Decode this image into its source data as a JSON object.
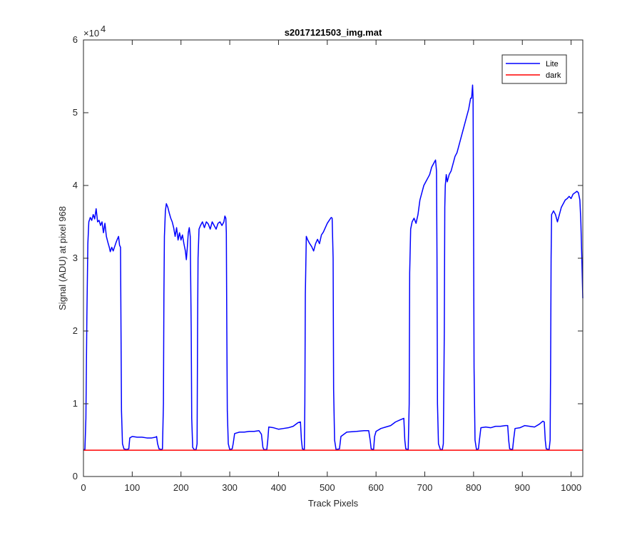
{
  "chart_data": {
    "type": "line",
    "title": "s2017121503_img.mat",
    "xlabel": "Track Pixels",
    "ylabel": "Signal (ADU) at pixel 968",
    "xlim": [
      0,
      1024
    ],
    "ylim": [
      0,
      60000
    ],
    "x_ticks": [
      0,
      100,
      200,
      300,
      400,
      500,
      600,
      700,
      800,
      900,
      1000
    ],
    "x_tick_labels": [
      "0",
      "100",
      "200",
      "300",
      "400",
      "500",
      "600",
      "700",
      "800",
      "900",
      "1000"
    ],
    "y_ticks": [
      0,
      10000,
      20000,
      30000,
      40000,
      50000,
      60000
    ],
    "y_tick_labels": [
      "0",
      "1",
      "2",
      "3",
      "4",
      "5",
      "6"
    ],
    "y_exponent_label": "×10",
    "y_exponent_power": "4",
    "legend_position": "top-right",
    "grid": false,
    "series": [
      {
        "name": "Lite",
        "color": "#0000ff",
        "points": [
          [
            0,
            3700
          ],
          [
            3,
            3700
          ],
          [
            5,
            8000
          ],
          [
            7,
            22000
          ],
          [
            9,
            32000
          ],
          [
            11,
            35000
          ],
          [
            14,
            35600
          ],
          [
            17,
            35200
          ],
          [
            20,
            36000
          ],
          [
            23,
            35400
          ],
          [
            26,
            36800
          ],
          [
            29,
            35000
          ],
          [
            32,
            35200
          ],
          [
            35,
            34500
          ],
          [
            38,
            35000
          ],
          [
            41,
            33500
          ],
          [
            44,
            34800
          ],
          [
            47,
            33000
          ],
          [
            50,
            32200
          ],
          [
            53,
            31500
          ],
          [
            55,
            30900
          ],
          [
            58,
            31500
          ],
          [
            61,
            31000
          ],
          [
            64,
            31600
          ],
          [
            67,
            32200
          ],
          [
            70,
            32700
          ],
          [
            72,
            33000
          ],
          [
            74,
            31800
          ],
          [
            76,
            31500
          ],
          [
            77,
            20000
          ],
          [
            78,
            9000
          ],
          [
            80,
            4500
          ],
          [
            83,
            3800
          ],
          [
            88,
            3700
          ],
          [
            93,
            3800
          ],
          [
            95,
            5300
          ],
          [
            100,
            5500
          ],
          [
            110,
            5400
          ],
          [
            120,
            5400
          ],
          [
            130,
            5300
          ],
          [
            140,
            5300
          ],
          [
            148,
            5400
          ],
          [
            150,
            5500
          ],
          [
            152,
            4500
          ],
          [
            155,
            3800
          ],
          [
            160,
            3700
          ],
          [
            162,
            3800
          ],
          [
            164,
            10000
          ],
          [
            165,
            25000
          ],
          [
            166,
            33000
          ],
          [
            168,
            36500
          ],
          [
            170,
            37500
          ],
          [
            173,
            37000
          ],
          [
            176,
            36200
          ],
          [
            179,
            35500
          ],
          [
            182,
            35000
          ],
          [
            185,
            34200
          ],
          [
            188,
            33000
          ],
          [
            191,
            34200
          ],
          [
            194,
            32500
          ],
          [
            197,
            33500
          ],
          [
            200,
            32500
          ],
          [
            203,
            33200
          ],
          [
            206,
            32000
          ],
          [
            209,
            31000
          ],
          [
            211,
            29800
          ],
          [
            213,
            31500
          ],
          [
            215,
            33500
          ],
          [
            217,
            34200
          ],
          [
            219,
            33000
          ],
          [
            221,
            20000
          ],
          [
            222,
            8000
          ],
          [
            224,
            4000
          ],
          [
            227,
            3700
          ],
          [
            231,
            3700
          ],
          [
            233,
            4500
          ],
          [
            234,
            20000
          ],
          [
            235,
            30000
          ],
          [
            237,
            34000
          ],
          [
            240,
            34500
          ],
          [
            244,
            35000
          ],
          [
            248,
            34200
          ],
          [
            252,
            35000
          ],
          [
            256,
            34700
          ],
          [
            260,
            34000
          ],
          [
            264,
            35000
          ],
          [
            268,
            34500
          ],
          [
            272,
            34000
          ],
          [
            276,
            34800
          ],
          [
            280,
            35000
          ],
          [
            284,
            34500
          ],
          [
            288,
            35000
          ],
          [
            290,
            35800
          ],
          [
            292,
            35500
          ],
          [
            293,
            33500
          ],
          [
            294,
            20000
          ],
          [
            295,
            9000
          ],
          [
            297,
            4500
          ],
          [
            300,
            3700
          ],
          [
            305,
            3800
          ],
          [
            307,
            4500
          ],
          [
            310,
            5900
          ],
          [
            320,
            6100
          ],
          [
            330,
            6100
          ],
          [
            340,
            6200
          ],
          [
            350,
            6200
          ],
          [
            360,
            6300
          ],
          [
            365,
            5800
          ],
          [
            368,
            4000
          ],
          [
            370,
            3700
          ],
          [
            376,
            3700
          ],
          [
            378,
            5000
          ],
          [
            380,
            6800
          ],
          [
            390,
            6700
          ],
          [
            400,
            6500
          ],
          [
            410,
            6600
          ],
          [
            420,
            6700
          ],
          [
            430,
            6900
          ],
          [
            440,
            7400
          ],
          [
            445,
            7500
          ],
          [
            447,
            5000
          ],
          [
            449,
            3800
          ],
          [
            453,
            3700
          ],
          [
            454,
            10000
          ],
          [
            455,
            25000
          ],
          [
            457,
            33000
          ],
          [
            460,
            32500
          ],
          [
            464,
            32000
          ],
          [
            468,
            31600
          ],
          [
            472,
            31000
          ],
          [
            476,
            32000
          ],
          [
            480,
            32600
          ],
          [
            484,
            32000
          ],
          [
            488,
            33200
          ],
          [
            492,
            33600
          ],
          [
            496,
            34200
          ],
          [
            500,
            34800
          ],
          [
            504,
            35200
          ],
          [
            508,
            35600
          ],
          [
            510,
            35500
          ],
          [
            512,
            30000
          ],
          [
            513,
            12000
          ],
          [
            515,
            5000
          ],
          [
            518,
            3700
          ],
          [
            525,
            3800
          ],
          [
            528,
            5500
          ],
          [
            540,
            6100
          ],
          [
            560,
            6200
          ],
          [
            575,
            6300
          ],
          [
            585,
            6300
          ],
          [
            588,
            5000
          ],
          [
            590,
            3800
          ],
          [
            595,
            3700
          ],
          [
            597,
            5500
          ],
          [
            600,
            6200
          ],
          [
            610,
            6600
          ],
          [
            620,
            6800
          ],
          [
            630,
            7000
          ],
          [
            640,
            7500
          ],
          [
            650,
            7800
          ],
          [
            657,
            8000
          ],
          [
            659,
            5000
          ],
          [
            661,
            3800
          ],
          [
            666,
            3700
          ],
          [
            668,
            10000
          ],
          [
            669,
            28000
          ],
          [
            671,
            34000
          ],
          [
            674,
            35000
          ],
          [
            678,
            35500
          ],
          [
            682,
            34800
          ],
          [
            686,
            36000
          ],
          [
            690,
            38000
          ],
          [
            694,
            39000
          ],
          [
            698,
            40000
          ],
          [
            702,
            40500
          ],
          [
            706,
            41000
          ],
          [
            710,
            41500
          ],
          [
            714,
            42500
          ],
          [
            718,
            43000
          ],
          [
            722,
            43500
          ],
          [
            724,
            42000
          ],
          [
            725,
            30000
          ],
          [
            726,
            10000
          ],
          [
            728,
            4500
          ],
          [
            732,
            3700
          ],
          [
            736,
            3700
          ],
          [
            738,
            4500
          ],
          [
            740,
            20000
          ],
          [
            741,
            37000
          ],
          [
            742,
            40000
          ],
          [
            744,
            41500
          ],
          [
            746,
            40500
          ],
          [
            750,
            41500
          ],
          [
            754,
            42000
          ],
          [
            758,
            43000
          ],
          [
            762,
            44000
          ],
          [
            766,
            44500
          ],
          [
            770,
            45500
          ],
          [
            774,
            46500
          ],
          [
            778,
            47500
          ],
          [
            782,
            48500
          ],
          [
            786,
            49500
          ],
          [
            790,
            50500
          ],
          [
            794,
            52000
          ],
          [
            796,
            52000
          ],
          [
            798,
            53800
          ],
          [
            799,
            52000
          ],
          [
            800,
            35000
          ],
          [
            801,
            15000
          ],
          [
            803,
            5000
          ],
          [
            806,
            3700
          ],
          [
            810,
            3800
          ],
          [
            812,
            5000
          ],
          [
            815,
            6700
          ],
          [
            825,
            6800
          ],
          [
            835,
            6700
          ],
          [
            845,
            6900
          ],
          [
            855,
            6900
          ],
          [
            865,
            7000
          ],
          [
            870,
            7000
          ],
          [
            872,
            5000
          ],
          [
            874,
            3800
          ],
          [
            880,
            3700
          ],
          [
            882,
            5000
          ],
          [
            885,
            6600
          ],
          [
            895,
            6700
          ],
          [
            905,
            7000
          ],
          [
            915,
            6900
          ],
          [
            925,
            6800
          ],
          [
            935,
            7200
          ],
          [
            942,
            7600
          ],
          [
            945,
            7500
          ],
          [
            947,
            5000
          ],
          [
            949,
            3800
          ],
          [
            955,
            3700
          ],
          [
            957,
            5000
          ],
          [
            958,
            15000
          ],
          [
            959,
            30000
          ],
          [
            960,
            36000
          ],
          [
            964,
            36500
          ],
          [
            968,
            36000
          ],
          [
            972,
            35000
          ],
          [
            976,
            36000
          ],
          [
            980,
            37000
          ],
          [
            984,
            37500
          ],
          [
            988,
            38000
          ],
          [
            992,
            38200
          ],
          [
            996,
            38500
          ],
          [
            1000,
            38200
          ],
          [
            1004,
            38800
          ],
          [
            1008,
            39000
          ],
          [
            1012,
            39200
          ],
          [
            1015,
            39000
          ],
          [
            1018,
            38000
          ],
          [
            1020,
            35000
          ],
          [
            1022,
            30000
          ],
          [
            1024,
            24500
          ]
        ]
      },
      {
        "name": "dark",
        "color": "#ff0000",
        "points": [
          [
            0,
            3620
          ],
          [
            200,
            3620
          ],
          [
            400,
            3620
          ],
          [
            600,
            3620
          ],
          [
            800,
            3620
          ],
          [
            1024,
            3620
          ]
        ]
      }
    ]
  }
}
